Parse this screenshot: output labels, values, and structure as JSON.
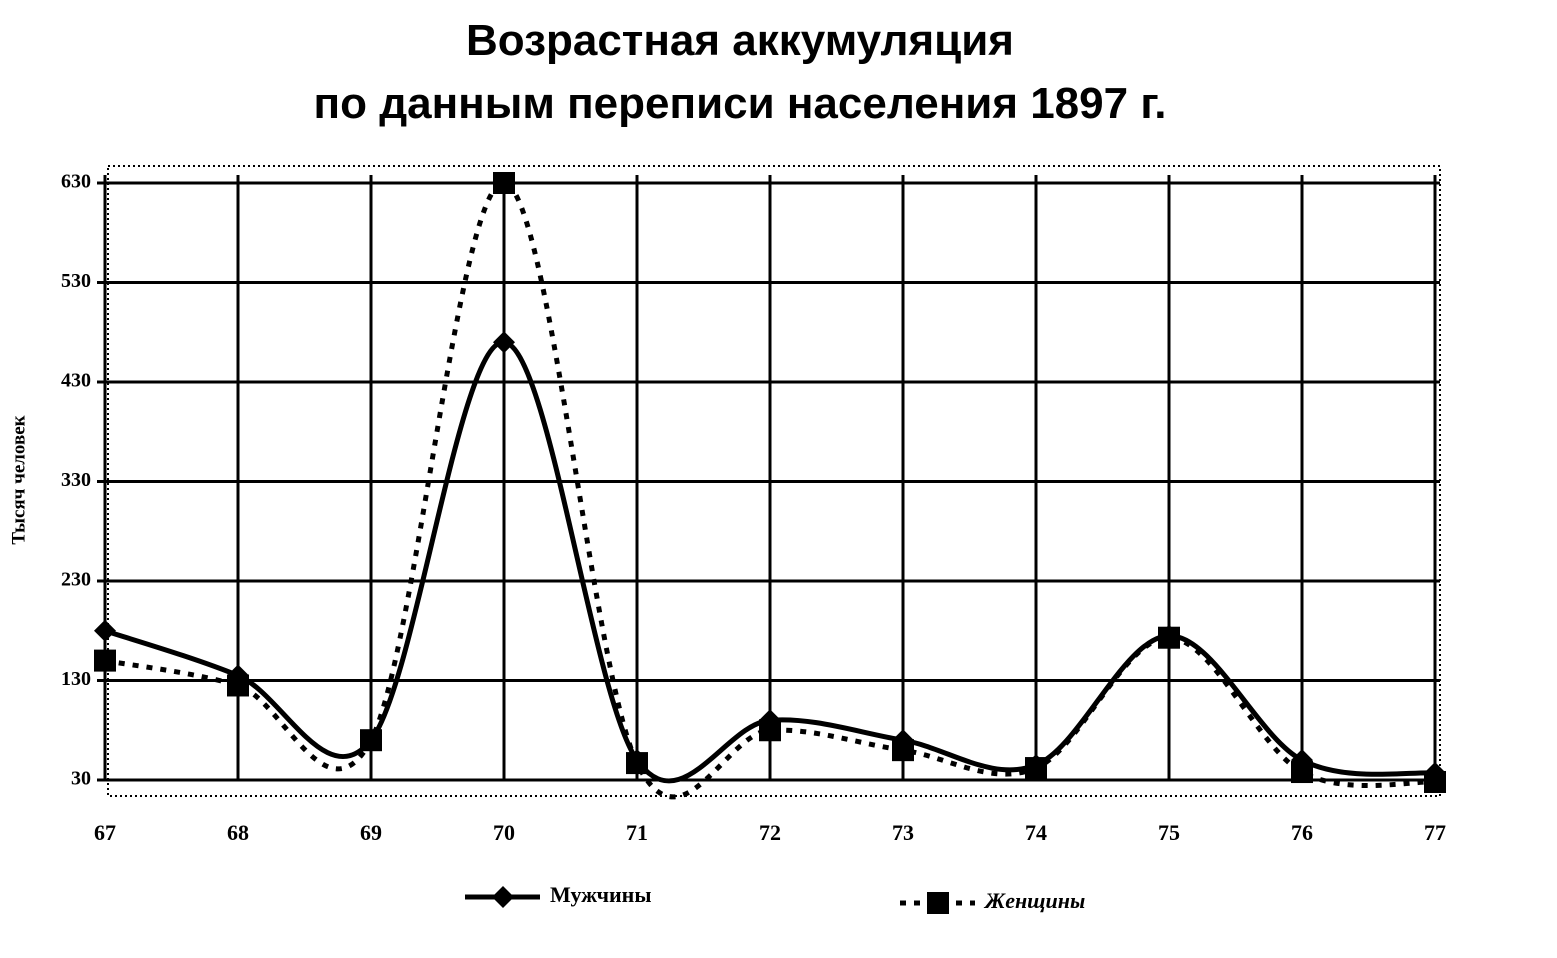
{
  "chart_data": {
    "type": "line",
    "title": [
      "Возрастная аккумуляция",
      "по данным переписи населения 1897 г."
    ],
    "y_label": "Тысяч человек",
    "categories": [
      "67",
      "68",
      "69",
      "70",
      "71",
      "72",
      "73",
      "74",
      "75",
      "76",
      "77"
    ],
    "series": [
      {
        "name": "Мужчины",
        "color": "#000000",
        "style": "solid",
        "marker": "diamond",
        "values": [
          180,
          135,
          70,
          470,
          50,
          90,
          70,
          45,
          175,
          50,
          37
        ]
      },
      {
        "name": "Женщины",
        "color": "#000000",
        "style": "dotted",
        "marker": "square",
        "values": [
          150,
          125,
          70,
          630,
          47,
          80,
          60,
          42,
          173,
          38,
          28
        ]
      }
    ],
    "ylim": [
      30,
      630
    ],
    "yticks": [
      30,
      130,
      230,
      330,
      430,
      530,
      630
    ],
    "grid": true,
    "legend": "bottom"
  }
}
